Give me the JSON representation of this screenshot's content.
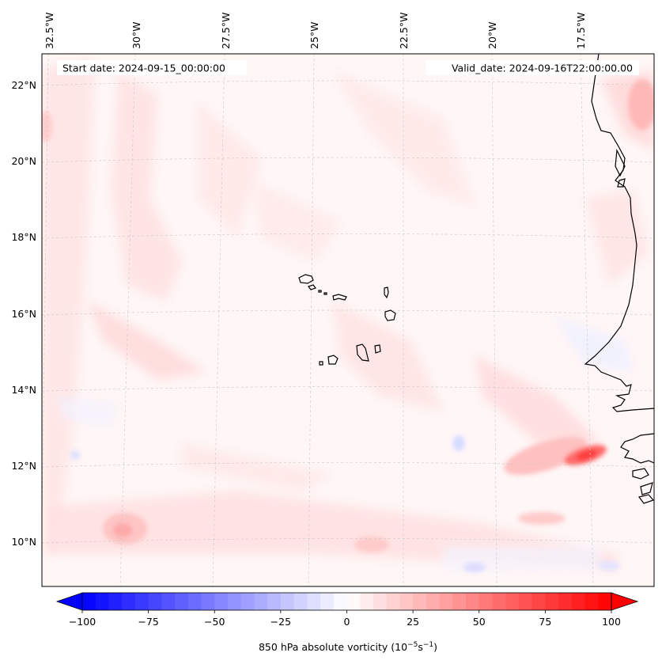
{
  "map": {
    "start_label": "Start date: 2024-09-15_00:00:00",
    "valid_label": "Valid_date: 2024-09-16T22:00:00.00",
    "lon_labels": [
      "32.5°W",
      "30°W",
      "27.5°W",
      "25°W",
      "22.5°W",
      "20°W",
      "17.5°W"
    ],
    "lat_labels": [
      "22°N",
      "20°N",
      "18°N",
      "16°N",
      "14°N",
      "12°N",
      "10°N"
    ],
    "coastline_color": "#000000",
    "gridline_color": "#c8c8c8"
  },
  "colorbar": {
    "title_main": "850 hPa absolute vorticity (10",
    "title_exp1": "−5",
    "title_mid": "s",
    "title_exp2": "−1",
    "title_end": ")",
    "ticks": [
      "−100",
      "−75",
      "−50",
      "−25",
      "0",
      "25",
      "50",
      "75",
      "100"
    ],
    "min_color": "#0000ff",
    "mid_color": "#ffffff",
    "max_color": "#ff0000",
    "levels": 41
  }
}
